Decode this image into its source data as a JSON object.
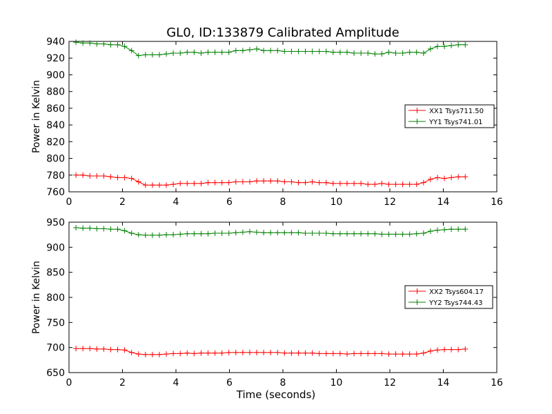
{
  "figure_title": "GL0, ID:133879 Calibrated Amplitude",
  "chart_data": [
    {
      "type": "line",
      "title": "GL0, ID:133879 Calibrated Amplitude",
      "xlabel": "",
      "ylabel": "Power in Kelvin",
      "xlim": [
        0,
        16
      ],
      "ylim": [
        760,
        940
      ],
      "xticks": [
        0,
        2,
        4,
        6,
        8,
        10,
        12,
        14,
        16
      ],
      "yticks": [
        760,
        780,
        800,
        820,
        840,
        860,
        880,
        900,
        920,
        940
      ],
      "grid": false,
      "legend_position": "center-right",
      "x": [
        0.26,
        0.52,
        0.78,
        1.04,
        1.3,
        1.56,
        1.82,
        2.08,
        2.34,
        2.6,
        2.86,
        3.12,
        3.38,
        3.64,
        3.9,
        4.16,
        4.42,
        4.68,
        4.94,
        5.2,
        5.46,
        5.72,
        5.98,
        6.24,
        6.5,
        6.76,
        7.02,
        7.28,
        7.54,
        7.8,
        8.06,
        8.32,
        8.58,
        8.84,
        9.1,
        9.36,
        9.62,
        9.88,
        10.14,
        10.4,
        10.66,
        10.92,
        11.18,
        11.44,
        11.7,
        11.96,
        12.22,
        12.48,
        12.74,
        13.0,
        13.26,
        13.52,
        13.78,
        14.04,
        14.3,
        14.56,
        14.82
      ],
      "series": [
        {
          "name": "XX1 Tsys711.50",
          "color": "#ff0000",
          "values": [
            780,
            780,
            779,
            779,
            779,
            778,
            777,
            777,
            776,
            772,
            768,
            768,
            768,
            768,
            769,
            770,
            770,
            770,
            770,
            771,
            771,
            771,
            771,
            772,
            772,
            772,
            773,
            773,
            773,
            773,
            772,
            772,
            771,
            771,
            772,
            771,
            771,
            770,
            770,
            770,
            770,
            770,
            769,
            769,
            770,
            769,
            769,
            769,
            769,
            769,
            771,
            775,
            777,
            776,
            777,
            778,
            778
          ]
        },
        {
          "name": "YY1 Tsys741.01",
          "color": "#008000",
          "values": [
            939,
            938,
            938,
            937,
            937,
            936,
            936,
            934,
            929,
            923,
            924,
            924,
            924,
            925,
            926,
            926,
            927,
            927,
            926,
            927,
            927,
            927,
            927,
            929,
            929,
            930,
            931,
            929,
            929,
            929,
            928,
            928,
            928,
            928,
            928,
            928,
            928,
            927,
            927,
            927,
            926,
            926,
            926,
            925,
            925,
            927,
            926,
            926,
            927,
            927,
            926,
            931,
            934,
            934,
            935,
            936,
            936
          ]
        }
      ]
    },
    {
      "type": "line",
      "title": "",
      "xlabel": "Time (seconds)",
      "ylabel": "Power in Kelvin",
      "xlim": [
        0,
        16
      ],
      "ylim": [
        650,
        950
      ],
      "xticks": [
        0,
        2,
        4,
        6,
        8,
        10,
        12,
        14,
        16
      ],
      "yticks": [
        650,
        700,
        750,
        800,
        850,
        900,
        950
      ],
      "grid": false,
      "legend_position": "center-right",
      "x": [
        0.26,
        0.52,
        0.78,
        1.04,
        1.3,
        1.56,
        1.82,
        2.08,
        2.34,
        2.6,
        2.86,
        3.12,
        3.38,
        3.64,
        3.9,
        4.16,
        4.42,
        4.68,
        4.94,
        5.2,
        5.46,
        5.72,
        5.98,
        6.24,
        6.5,
        6.76,
        7.02,
        7.28,
        7.54,
        7.8,
        8.06,
        8.32,
        8.58,
        8.84,
        9.1,
        9.36,
        9.62,
        9.88,
        10.14,
        10.4,
        10.66,
        10.92,
        11.18,
        11.44,
        11.7,
        11.96,
        12.22,
        12.48,
        12.74,
        13.0,
        13.26,
        13.52,
        13.78,
        14.04,
        14.3,
        14.56,
        14.82
      ],
      "series": [
        {
          "name": "XX2 Tsys604.17",
          "color": "#ff0000",
          "values": [
            698,
            698,
            698,
            697,
            697,
            696,
            696,
            695,
            690,
            687,
            686,
            686,
            686,
            687,
            688,
            688,
            689,
            688,
            689,
            689,
            689,
            689,
            690,
            690,
            690,
            690,
            690,
            690,
            690,
            690,
            689,
            689,
            689,
            689,
            689,
            688,
            688,
            688,
            688,
            687,
            688,
            688,
            688,
            688,
            688,
            687,
            687,
            687,
            687,
            687,
            689,
            693,
            695,
            696,
            696,
            696,
            697
          ]
        },
        {
          "name": "YY2 Tsys744.43",
          "color": "#008000",
          "values": [
            939,
            938,
            938,
            937,
            937,
            936,
            936,
            933,
            928,
            925,
            924,
            924,
            924,
            925,
            925,
            926,
            927,
            927,
            927,
            927,
            928,
            928,
            928,
            929,
            930,
            931,
            930,
            929,
            929,
            929,
            929,
            929,
            929,
            928,
            928,
            928,
            928,
            927,
            927,
            927,
            927,
            927,
            927,
            927,
            926,
            926,
            926,
            926,
            926,
            927,
            928,
            932,
            934,
            935,
            936,
            936,
            936
          ]
        }
      ]
    }
  ]
}
